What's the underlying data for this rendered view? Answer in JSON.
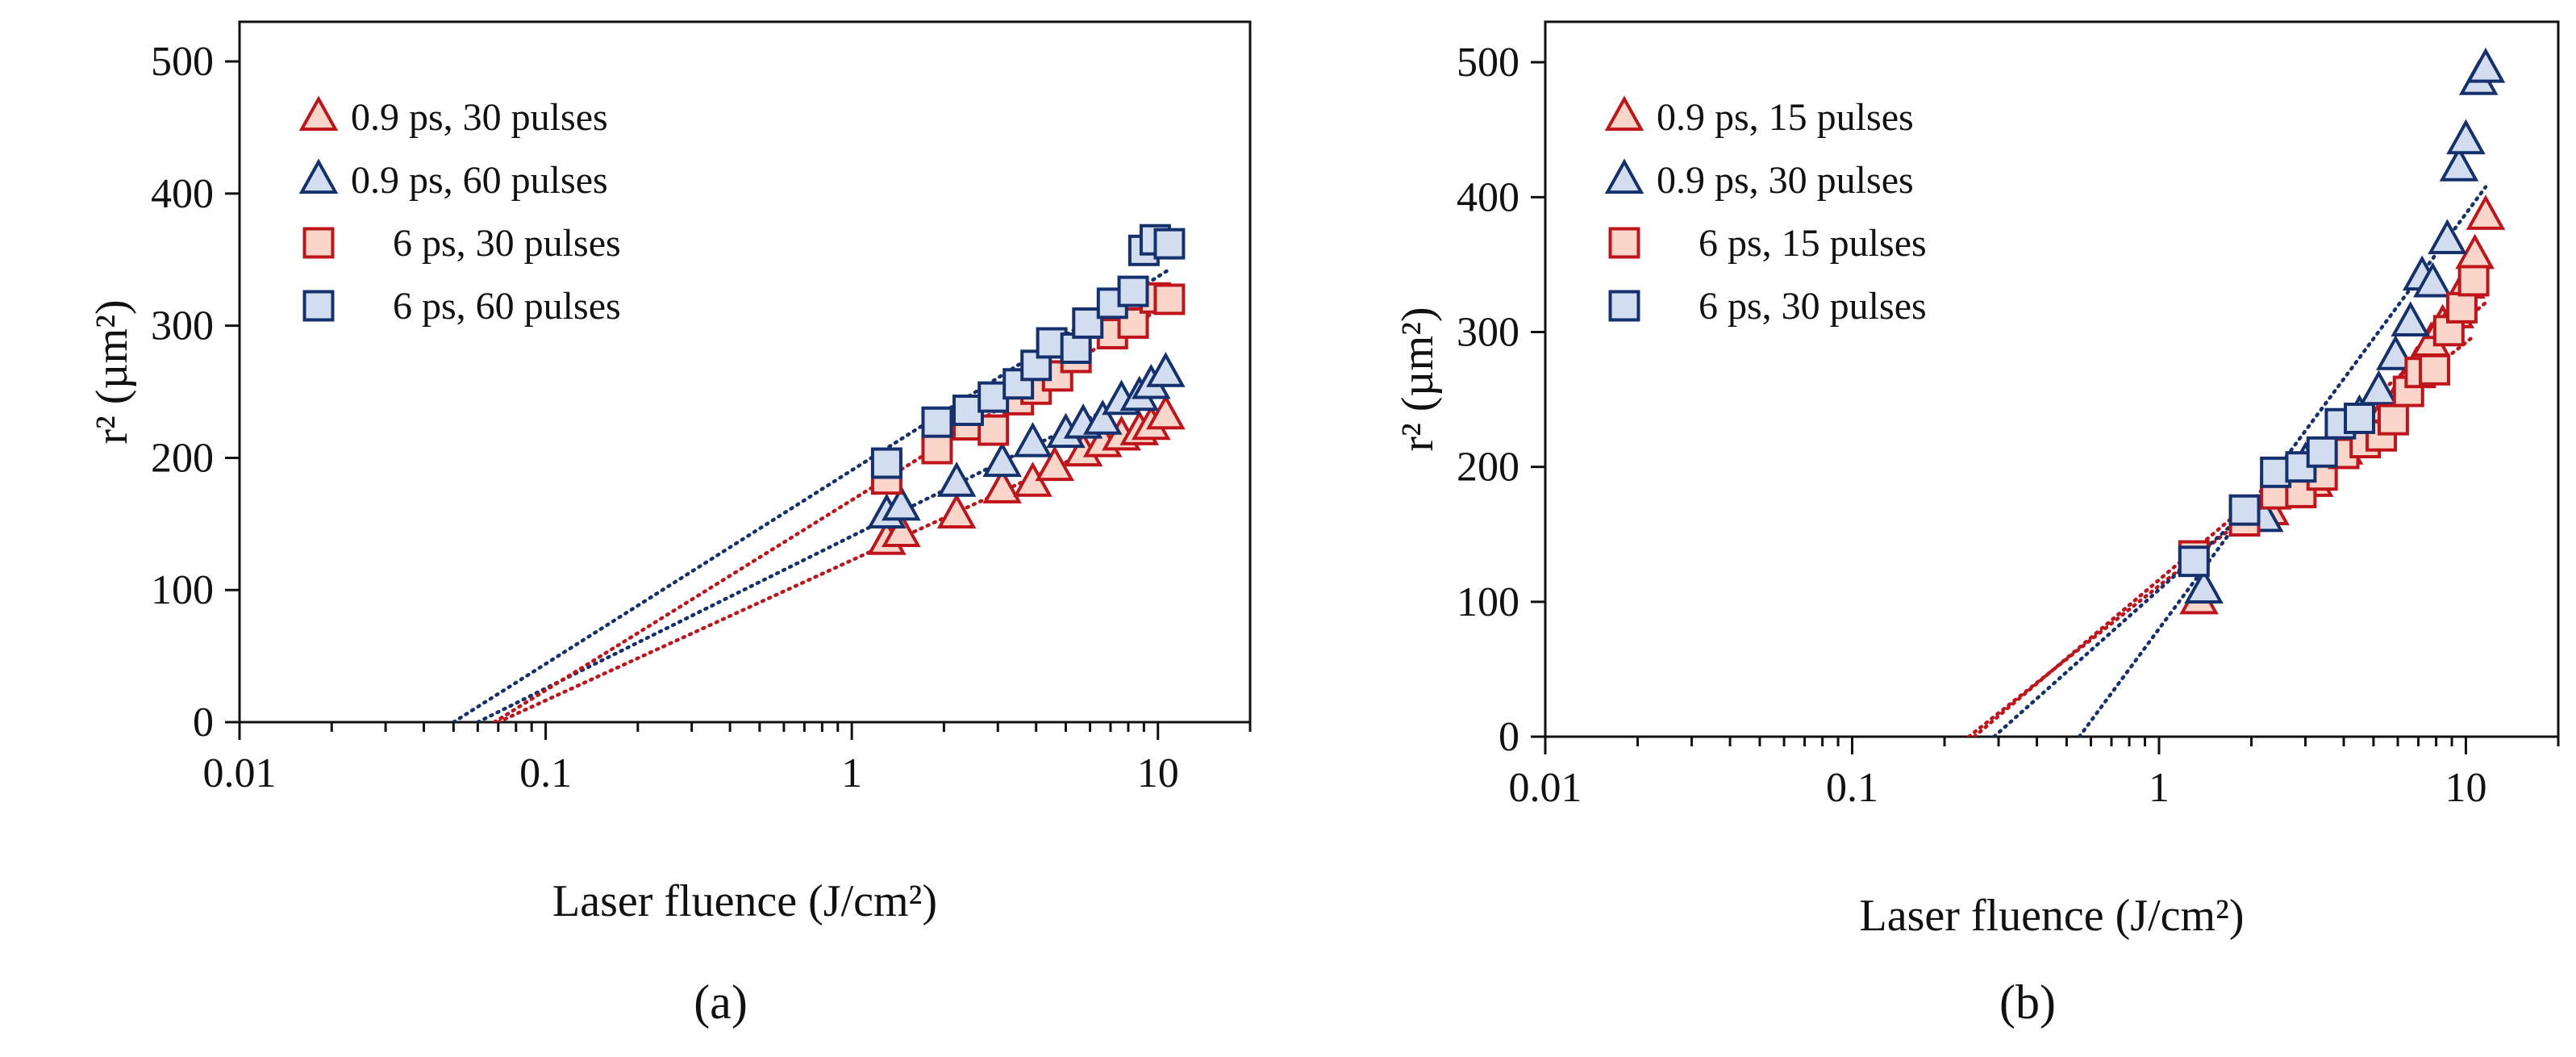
{
  "colors": {
    "red_stroke": "#c0141b",
    "red_fill": "#f9d6c9",
    "blue_stroke": "#14316e",
    "blue_fill": "#d2ddef",
    "axis": "#111111"
  },
  "chart_data": [
    {
      "id": "a",
      "type": "scatter",
      "panel_label": "(a)",
      "xlabel": "Laser fluence (J/cm²)",
      "ylabel": "r² (µm²)",
      "xscale": "log",
      "xlim": [
        0.01,
        20
      ],
      "ylim": [
        0,
        530
      ],
      "xticks": [
        0.01,
        0.1,
        1,
        10
      ],
      "xtick_labels": [
        "0.01",
        "0.1",
        "1",
        "10"
      ],
      "yticks": [
        0,
        100,
        200,
        300,
        400,
        500
      ],
      "ytick_labels": [
        "0",
        "100",
        "200",
        "300",
        "400",
        "500"
      ],
      "legend_position": "top-left",
      "series": [
        {
          "name": "0.9 ps, 30 pulses",
          "marker": "triangle",
          "color": "red",
          "x": [
            1.3,
            1.45,
            2.2,
            3.1,
            3.9,
            4.6,
            5.7,
            6.6,
            7.6,
            8.7,
            9.5,
            10.6
          ],
          "y": [
            137,
            143,
            157,
            176,
            181,
            193,
            204,
            211,
            216,
            220,
            224,
            232
          ],
          "fit_x0": 0.07
        },
        {
          "name": "0.9 ps, 60 pulses",
          "marker": "triangle",
          "color": "blue",
          "x": [
            1.3,
            1.45,
            2.2,
            3.1,
            3.9,
            5.0,
            5.7,
            6.6,
            7.6,
            8.7,
            9.5,
            10.6
          ],
          "y": [
            157,
            163,
            181,
            196,
            211,
            218,
            225,
            228,
            243,
            246,
            255,
            264
          ],
          "fit_x0": 0.06
        },
        {
          "name": "6 ps, 30 pulses",
          "marker": "square",
          "color": "red",
          "x": [
            1.3,
            1.9,
            2.4,
            2.9,
            3.5,
            4.0,
            4.7,
            5.4,
            7.1,
            8.3,
            9.8,
            10.9
          ],
          "y": [
            184,
            207,
            225,
            221,
            244,
            252,
            262,
            276,
            294,
            302,
            321,
            320
          ],
          "fit_x0": 0.068
        },
        {
          "name": "6 ps, 60 pulses",
          "marker": "square",
          "color": "blue",
          "x": [
            1.3,
            1.9,
            2.4,
            2.9,
            3.5,
            4.0,
            4.5,
            5.4,
            5.9,
            7.1,
            8.3,
            9.0,
            9.8,
            10.9
          ],
          "y": [
            196,
            227,
            236,
            246,
            256,
            270,
            287,
            283,
            302,
            317,
            326,
            357,
            365,
            362
          ],
          "fit_x0": 0.05
        }
      ]
    },
    {
      "id": "b",
      "type": "scatter",
      "panel_label": "(b)",
      "xlabel": "Laser fluence (J/cm²)",
      "ylabel": "r² (µm²)",
      "xscale": "log",
      "xlim": [
        0.01,
        20
      ],
      "ylim": [
        0,
        530
      ],
      "xticks": [
        0.01,
        0.1,
        1,
        10
      ],
      "xtick_labels": [
        "0.01",
        "0.1",
        "1",
        "10"
      ],
      "yticks": [
        0,
        100,
        200,
        300,
        400,
        500
      ],
      "ytick_labels": [
        "0",
        "100",
        "200",
        "300",
        "400",
        "500"
      ],
      "legend_position": "top-left",
      "series": [
        {
          "name": "0.9 ps, 15 pulses",
          "marker": "triangle",
          "color": "red",
          "x": [
            1.35,
            2.3,
            3.2,
            4.0,
            4.8,
            5.5,
            6.3,
            6.9,
            7.7,
            8.4,
            9.2,
            10.0,
            10.7,
            11.6
          ],
          "y": [
            101,
            167,
            188,
            212,
            228,
            243,
            259,
            274,
            292,
            305,
            313,
            335,
            357,
            386
          ],
          "fit_x0": 0.25
        },
        {
          "name": "0.9 ps, 30 pulses",
          "marker": "triangle",
          "color": "blue",
          "x": [
            1.4,
            2.2,
            3.0,
            3.8,
            4.5,
            5.2,
            5.9,
            6.6,
            7.2,
            7.8,
            8.7,
            9.5,
            10.0,
            11.0,
            11.6
          ],
          "y": [
            109,
            162,
            203,
            223,
            238,
            256,
            282,
            307,
            341,
            336,
            368,
            422,
            442,
            486,
            495
          ],
          "fit_x0": 0.55
        },
        {
          "name": "6 ps, 15 pulses",
          "marker": "square",
          "color": "red",
          "x": [
            1.3,
            1.9,
            2.4,
            2.9,
            3.4,
            4.0,
            4.7,
            5.3,
            5.8,
            6.5,
            7.1,
            7.9,
            8.8,
            9.7,
            10.6
          ],
          "y": [
            134,
            160,
            180,
            181,
            194,
            210,
            218,
            223,
            235,
            256,
            270,
            272,
            301,
            318,
            338
          ],
          "fit_x0": 0.24
        },
        {
          "name": "6 ps, 30 pulses",
          "marker": "square",
          "color": "blue",
          "x": [
            1.3,
            1.9,
            2.4,
            2.9,
            3.4,
            3.9,
            4.5
          ],
          "y": [
            130,
            168,
            196,
            200,
            211,
            232,
            236
          ],
          "fit_x0": 0.29
        }
      ]
    }
  ]
}
